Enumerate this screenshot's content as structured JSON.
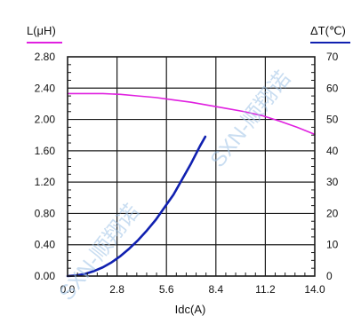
{
  "chart_data": {
    "type": "line",
    "title": "",
    "xlabel": "Idc(A)",
    "x_ticks": [
      "0.0",
      "2.8",
      "5.6",
      "8.4",
      "11.2",
      "14.0"
    ],
    "x_tick_values": [
      0,
      2.8,
      5.6,
      8.4,
      11.2,
      14.0
    ],
    "xlim": [
      0,
      14.0
    ],
    "left_axis": {
      "label": "L(μH)",
      "ticks": [
        "0.00",
        "0.40",
        "0.80",
        "1.20",
        "1.60",
        "2.00",
        "2.40",
        "2.80"
      ],
      "tick_values": [
        0,
        0.4,
        0.8,
        1.2,
        1.6,
        2.0,
        2.4,
        2.8
      ],
      "lim": [
        0,
        2.8
      ]
    },
    "right_axis": {
      "label": "ΔT(℃)",
      "ticks": [
        "0",
        "10",
        "20",
        "30",
        "40",
        "50",
        "60",
        "70"
      ],
      "tick_values": [
        0,
        10,
        20,
        30,
        40,
        50,
        60,
        70
      ],
      "lim": [
        0,
        70
      ]
    },
    "grid": true,
    "series": [
      {
        "axis": "left",
        "color": "#e020e0",
        "x": [
          0,
          1,
          2,
          3,
          4,
          5,
          6,
          7,
          8,
          9,
          10,
          11,
          12,
          13,
          14
        ],
        "y": [
          2.33,
          2.33,
          2.33,
          2.32,
          2.3,
          2.28,
          2.25,
          2.22,
          2.18,
          2.14,
          2.1,
          2.05,
          1.98,
          1.9,
          1.81
        ]
      },
      {
        "axis": "right",
        "color": "#1020b0",
        "x": [
          0,
          0.5,
          1.0,
          1.5,
          2.0,
          2.5,
          3.0,
          3.5,
          4.0,
          4.5,
          5.0,
          5.5,
          6.0,
          6.5,
          7.0,
          7.5,
          7.8
        ],
        "y": [
          0,
          0.2,
          0.7,
          1.6,
          2.8,
          4.4,
          6.4,
          8.8,
          11.5,
          14.6,
          18.0,
          22.0,
          26.0,
          31.0,
          36.0,
          41.5,
          44.5
        ]
      }
    ],
    "watermark": [
      "SXN-顺翔诺",
      "SXN-顺翔诺"
    ]
  }
}
